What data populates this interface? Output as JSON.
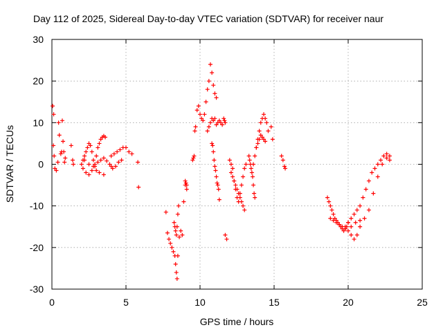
{
  "chart_data": {
    "type": "scatter",
    "title": "Day 112 of 2025, Sidereal Day-to-day VTEC variation (SDTVAR) for receiver naur",
    "xlabel": "GPS time / hours",
    "ylabel": "SDTVAR / TECUs",
    "xlim": [
      0,
      25
    ],
    "ylim": [
      -30,
      30
    ],
    "xticks": [
      0,
      5,
      10,
      15,
      20,
      25
    ],
    "yticks": [
      -30,
      -20,
      -10,
      0,
      10,
      20,
      30
    ],
    "xtick_labels": [
      "0",
      "5",
      "10",
      "15",
      "20",
      "25"
    ],
    "ytick_labels": [
      "-30",
      "-20",
      "-10",
      "0",
      "10",
      "20",
      "30"
    ],
    "grid": true,
    "marker": "+",
    "color": "#ff0000",
    "x": [
      0.05,
      0.12,
      0.1,
      0.15,
      0.2,
      0.3,
      0.4,
      0.45,
      0.5,
      0.6,
      0.65,
      0.7,
      0.75,
      0.8,
      0.85,
      0.9,
      1.3,
      1.4,
      1.45,
      2.0,
      2.1,
      2.2,
      2.3,
      2.4,
      2.5,
      2.6,
      2.7,
      2.8,
      2.9,
      3.0,
      3.1,
      3.2,
      3.3,
      3.4,
      3.5,
      3.6,
      2.1,
      2.3,
      2.5,
      2.7,
      2.9,
      3.1,
      3.3,
      3.5,
      3.7,
      3.9,
      4.0,
      2.2,
      2.5,
      2.8,
      3.0,
      3.2,
      3.5,
      4.0,
      4.2,
      4.4,
      4.6,
      4.8,
      5.0,
      5.2,
      5.4,
      4.1,
      4.3,
      4.5,
      4.7,
      5.8,
      5.85,
      7.7,
      7.8,
      7.9,
      8.0,
      8.1,
      8.2,
      8.3,
      8.35,
      8.4,
      8.45,
      8.5,
      8.6,
      8.7,
      8.8,
      8.9,
      9.0,
      9.1,
      8.25,
      8.3,
      8.35,
      8.4,
      8.45,
      8.5,
      8.55,
      9.0,
      9.05,
      9.1,
      9.5,
      9.55,
      9.6,
      9.65,
      9.7,
      9.8,
      9.9,
      10.0,
      10.1,
      10.2,
      10.3,
      10.4,
      10.5,
      10.6,
      10.7,
      10.8,
      10.9,
      11.0,
      11.1,
      10.5,
      10.6,
      10.7,
      10.8,
      10.9,
      11.0,
      11.1,
      11.2,
      11.3,
      11.4,
      11.5,
      10.8,
      10.85,
      10.9,
      10.95,
      11.0,
      11.05,
      11.1,
      11.15,
      11.2,
      11.25,
      11.3,
      11.6,
      11.65,
      11.7,
      11.7,
      11.8,
      12.0,
      12.1,
      12.2,
      12.3,
      12.4,
      12.5,
      12.6,
      12.7,
      12.8,
      12.9,
      13.0,
      13.1,
      12.1,
      12.2,
      12.3,
      12.4,
      12.5,
      12.6,
      12.7,
      12.8,
      12.9,
      13.0,
      13.3,
      13.35,
      13.4,
      13.45,
      13.5,
      13.55,
      13.6,
      13.65,
      13.7,
      13.6,
      13.7,
      13.8,
      13.9,
      14.0,
      14.1,
      14.2,
      14.3,
      14.4,
      14.5,
      14.6,
      13.8,
      13.9,
      14.0,
      14.1,
      14.2,
      14.3,
      14.4,
      14.8,
      14.9,
      15.5,
      15.6,
      15.7,
      15.75,
      18.6,
      18.7,
      18.8,
      18.9,
      19.0,
      19.1,
      19.2,
      19.3,
      19.4,
      19.5,
      19.6,
      19.7,
      19.8,
      19.9,
      20.0,
      18.8,
      19.0,
      19.2,
      19.4,
      19.6,
      19.8,
      20.0,
      20.2,
      20.4,
      20.6,
      20.8,
      19.8,
      20.0,
      20.2,
      20.4,
      20.6,
      20.8,
      21.0,
      21.2,
      21.4,
      21.6,
      21.8,
      22.0,
      22.2,
      22.4,
      22.6,
      22.8,
      20.2,
      20.5,
      20.8,
      21.1,
      21.4,
      21.7,
      22.0,
      22.3,
      22.6,
      22.8
    ],
    "y": [
      14,
      12,
      4.5,
      2,
      -1,
      -1.5,
      0.5,
      10,
      7,
      2.5,
      3,
      10.5,
      5.5,
      3,
      0.5,
      1.5,
      4.5,
      1,
      0,
      0,
      1,
      2,
      3,
      4,
      5,
      4.5,
      3,
      1,
      0,
      2,
      4,
      5,
      6,
      6.5,
      6.8,
      6.5,
      -1,
      -2,
      -2.5,
      -1.5,
      -0.5,
      0.5,
      1,
      1.5,
      0.8,
      0,
      -0.5,
      1,
      0,
      -0.5,
      -1.5,
      -2,
      -2.5,
      2,
      2.5,
      3,
      3.5,
      4,
      4,
      3,
      2.5,
      -1,
      -0.5,
      0.5,
      1,
      0.5,
      -5.5,
      -11.5,
      -16.5,
      -18,
      -19,
      -20,
      -21,
      -22,
      -24,
      -26,
      -27.5,
      -22,
      -17.5,
      -16,
      -17,
      -9,
      -5,
      -6,
      -14,
      -15,
      -16,
      -17,
      -15,
      -12,
      -10,
      -4,
      -4.5,
      -5,
      1,
      1.5,
      2,
      8,
      9,
      13,
      14,
      12,
      11,
      10.5,
      12,
      15,
      18,
      20,
      24,
      22,
      19,
      17,
      16,
      8,
      9,
      10,
      11,
      10.5,
      11,
      9.5,
      10,
      10.5,
      10,
      9.5,
      5,
      4.5,
      3,
      1,
      -0.5,
      -1.5,
      -3,
      -4.5,
      -5,
      -6,
      -8.5,
      11,
      10.5,
      10,
      -17,
      -18,
      1,
      0,
      -1,
      -4,
      -6,
      -8,
      -9,
      -7,
      -5,
      -3,
      -1,
      0,
      -2,
      -3,
      -4,
      -5,
      -6,
      -7,
      -8,
      -9,
      -10,
      -11,
      2,
      1,
      0,
      -1,
      -2,
      -3,
      -5,
      -7,
      -8,
      0,
      2,
      4,
      6,
      8,
      10,
      11,
      12,
      11,
      10,
      8,
      4,
      5,
      6,
      7,
      6.5,
      6,
      5.5,
      9,
      6,
      2,
      1,
      -0.5,
      -1,
      -8,
      -9,
      -10,
      -11,
      -12,
      -13,
      -13.5,
      -14,
      -14.5,
      -15,
      -15.5,
      -16,
      -15.5,
      -15,
      -14,
      -13,
      -13.5,
      -14,
      -14.5,
      -15,
      -15.5,
      -16,
      -17,
      -18,
      -17,
      -15,
      -15,
      -14,
      -13,
      -12,
      -11,
      -10,
      -8,
      -6,
      -4,
      -2,
      -1,
      0,
      1,
      2,
      2.5,
      2,
      -15,
      -14,
      -13.5,
      -13,
      -11,
      -7,
      -3,
      0,
      1.5,
      1
    ]
  }
}
